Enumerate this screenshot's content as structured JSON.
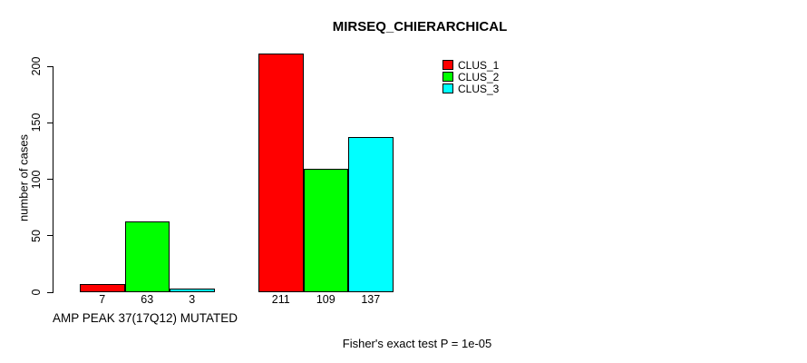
{
  "chart_data": {
    "type": "bar",
    "title": "MIRSEQ_CHIERARCHICAL",
    "ylabel": "number of cases",
    "xlabel": "",
    "categories": [
      "AMP PEAK 37(17Q12) MUTATED",
      ""
    ],
    "series": [
      {
        "name": "CLUS_1",
        "color": "#ff0000",
        "values": [
          7,
          211
        ]
      },
      {
        "name": "CLUS_2",
        "color": "#00ff00",
        "values": [
          63,
          109
        ]
      },
      {
        "name": "CLUS_3",
        "color": "#00ffff",
        "values": [
          3,
          137
        ]
      }
    ],
    "yticks": [
      0,
      50,
      100,
      150,
      200
    ],
    "ylim": [
      0,
      211
    ],
    "grid": false,
    "legend_position": "top-right",
    "bar_outline_color": "#000000",
    "annotation": "Fisher's exact test P = 1e-05"
  }
}
